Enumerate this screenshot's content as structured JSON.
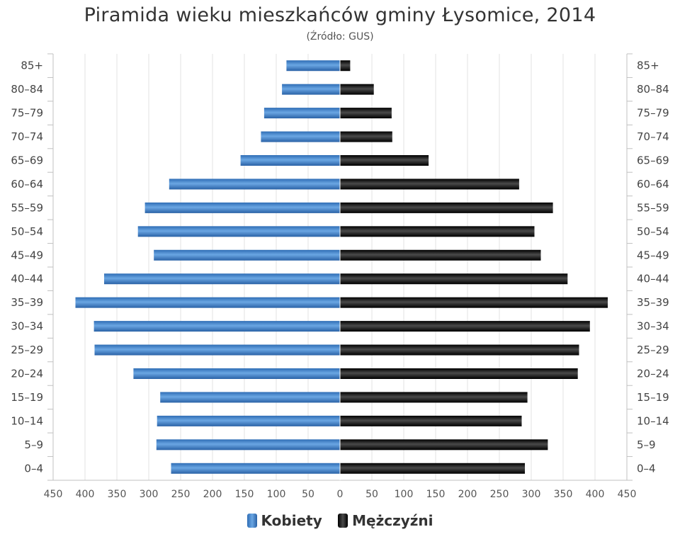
{
  "chart_data": {
    "type": "bar",
    "title": "Piramida wieku mieszkańców gminy Łysomice, 2014",
    "subtitle": "(Źródło: GUS)",
    "categories": [
      "0–4",
      "5–9",
      "10–14",
      "15–19",
      "20–24",
      "25–29",
      "30–34",
      "35–39",
      "40–44",
      "45–49",
      "50–54",
      "55–59",
      "60–64",
      "65–69",
      "70–74",
      "75–79",
      "80–84",
      "85+"
    ],
    "x_ticks": [
      "450",
      "400",
      "350",
      "300",
      "250",
      "200",
      "150",
      "100",
      "50",
      "0",
      "50",
      "100",
      "150",
      "200",
      "250",
      "300",
      "350",
      "400",
      "450"
    ],
    "xlim": [
      -450,
      450
    ],
    "orientation": "horizontal",
    "grid": true,
    "legend_position": "bottom",
    "series": [
      {
        "name": "Kobiety",
        "color": "#3f7fc6",
        "values": [
          265,
          288,
          287,
          282,
          324,
          385,
          386,
          415,
          370,
          292,
          317,
          306,
          268,
          156,
          124,
          119,
          91,
          84
        ]
      },
      {
        "name": "Mężczyźni",
        "color": "#1a1a1a",
        "values": [
          290,
          326,
          285,
          294,
          373,
          375,
          392,
          420,
          357,
          315,
          305,
          334,
          281,
          139,
          82,
          81,
          53,
          16
        ]
      }
    ]
  }
}
